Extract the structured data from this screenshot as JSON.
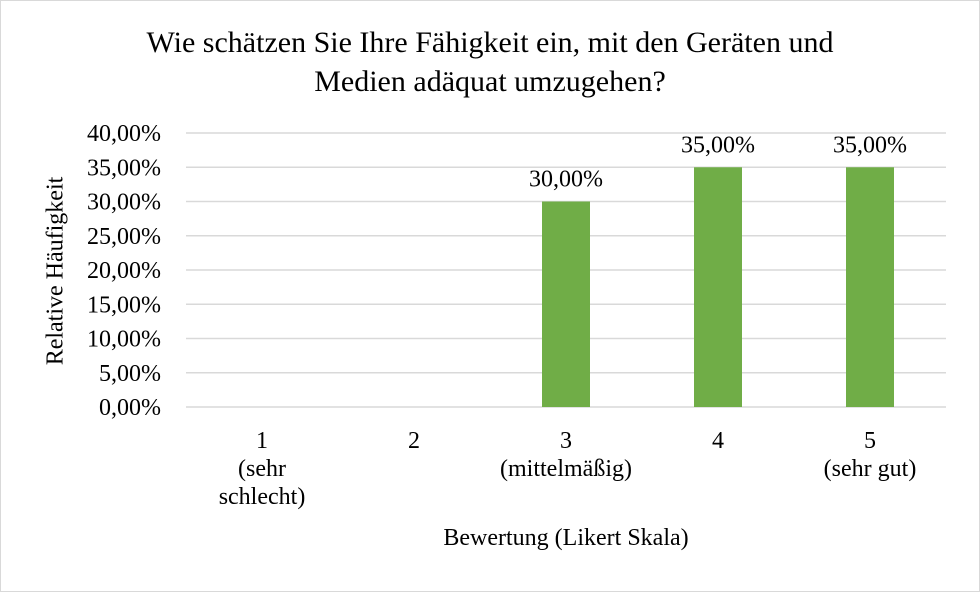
{
  "chart_data": {
    "type": "bar",
    "title": "Wie schätzen Sie Ihre Fähigkeit ein, mit den Geräten und\nMedien adäquat umzugehen?",
    "xlabel": "Bewertung (Likert Skala)",
    "ylabel": "Relative Häufigkeit",
    "categories": [
      [
        "1",
        "(sehr",
        "schlecht)"
      ],
      [
        "2"
      ],
      [
        "3",
        "(mittelmäßig)"
      ],
      [
        "4"
      ],
      [
        "5",
        "(sehr gut)"
      ]
    ],
    "values": [
      0,
      0,
      30,
      35,
      35
    ],
    "data_labels": [
      "",
      "",
      "30,00%",
      "35,00%",
      "35,00%"
    ],
    "ylim": [
      0,
      40
    ],
    "yticks": [
      "0,00%",
      "5,00%",
      "10,00%",
      "15,00%",
      "20,00%",
      "25,00%",
      "30,00%",
      "35,00%",
      "40,00%"
    ],
    "grid": true,
    "bar_color": "#70ad47",
    "grid_color": "#d9d9d9"
  }
}
